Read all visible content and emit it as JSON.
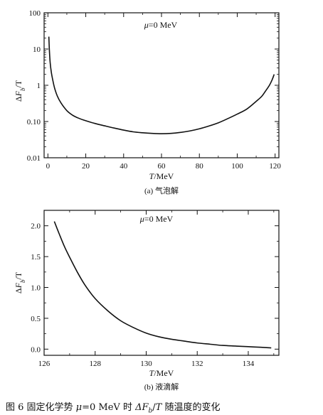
{
  "figure_caption": {
    "prefix": "图 6   固定化学势 ",
    "mu_symbol": "μ",
    "mid": "=0 MeV 时 ",
    "quantity": "ΔF",
    "quantity_sub": "b",
    "rest": "/",
    "T_symbol": "T",
    "suffix": " 随温度的变化"
  },
  "chart_data": [
    {
      "type": "line",
      "panel_label": "(a) 气泡解",
      "annotation": "μ=0 MeV",
      "xlabel": "T/MeV",
      "ylabel": "ΔF_b/T",
      "xlim": [
        -2,
        122
      ],
      "ylim": [
        0.01,
        100
      ],
      "yscale": "log",
      "x_ticks": [
        0,
        20,
        40,
        60,
        80,
        100,
        120
      ],
      "y_ticks": [
        0.01,
        0.1,
        1,
        10,
        100
      ],
      "y_tick_labels": [
        "0.01",
        "0.10",
        "1",
        "10",
        "100"
      ],
      "grid": false,
      "series": [
        {
          "color": "#111111",
          "x": [
            0.5,
            0.8,
            1.2,
            1.8,
            2.5,
            3.5,
            5,
            7,
            10,
            13,
            16,
            20,
            25,
            30,
            35,
            40,
            45,
            50,
            55,
            60,
            65,
            70,
            75,
            80,
            85,
            90,
            95,
            100,
            105,
            110,
            113,
            115,
            117,
            118.5,
            119.5
          ],
          "y": [
            22,
            9,
            4.2,
            2.3,
            1.45,
            0.85,
            0.5,
            0.32,
            0.2,
            0.15,
            0.125,
            0.105,
            0.088,
            0.076,
            0.066,
            0.058,
            0.052,
            0.049,
            0.047,
            0.046,
            0.047,
            0.05,
            0.055,
            0.063,
            0.075,
            0.092,
            0.12,
            0.16,
            0.22,
            0.36,
            0.5,
            0.7,
            1.0,
            1.45,
            2.0
          ]
        }
      ]
    },
    {
      "type": "line",
      "panel_label": "(b) 液滴解",
      "annotation": "μ=0 MeV",
      "xlabel": "T/MeV",
      "ylabel": "ΔF_b/T",
      "xlim": [
        126,
        135.2
      ],
      "ylim": [
        -0.1,
        2.25
      ],
      "x_ticks": [
        126,
        128,
        130,
        132,
        134
      ],
      "y_ticks": [
        0,
        0.5,
        1.0,
        1.5,
        2.0
      ],
      "y_tick_labels": [
        "0.0",
        "0.5",
        "1.0",
        "1.5",
        "2.0"
      ],
      "grid": false,
      "series": [
        {
          "color": "#111111",
          "x": [
            126.4,
            126.6,
            126.8,
            127.0,
            127.3,
            127.6,
            128.0,
            128.5,
            129.0,
            129.5,
            130.0,
            130.5,
            131.0,
            131.5,
            132.0,
            132.5,
            133.0,
            133.5,
            134.0,
            134.5,
            134.9
          ],
          "y": [
            2.07,
            1.86,
            1.66,
            1.49,
            1.25,
            1.04,
            0.82,
            0.62,
            0.46,
            0.35,
            0.26,
            0.2,
            0.16,
            0.13,
            0.1,
            0.08,
            0.06,
            0.05,
            0.04,
            0.03,
            0.02
          ]
        }
      ]
    }
  ]
}
